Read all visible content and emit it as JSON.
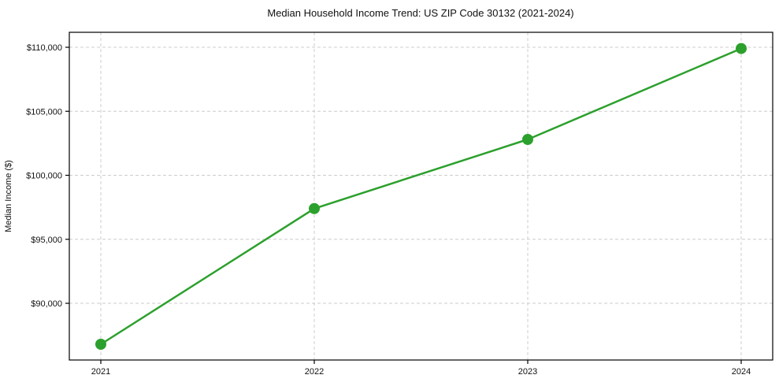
{
  "chart_data": {
    "type": "line",
    "title": "Median Household Income Trend: US ZIP Code 30132 (2021-2024)",
    "xlabel": "",
    "ylabel": "Median Income ($)",
    "x": [
      "2021",
      "2022",
      "2023",
      "2024"
    ],
    "series": [
      {
        "name": "Median household income",
        "values": [
          86800,
          97400,
          102800,
          109900
        ]
      }
    ],
    "yticks": [
      90000,
      95000,
      100000,
      105000,
      110000
    ],
    "ytick_labels": [
      "$90,000",
      "$95,000",
      "$100,000",
      "$105,000",
      "$110,000"
    ],
    "ylim": [
      85570,
      111170
    ],
    "grid": "dashed",
    "legend": "none",
    "colors": {
      "line": "#2ca02c",
      "marker": "#2ca02c",
      "grid": "#cccccc",
      "spine": "#000000",
      "text": "#111111",
      "background": "#ffffff"
    }
  }
}
